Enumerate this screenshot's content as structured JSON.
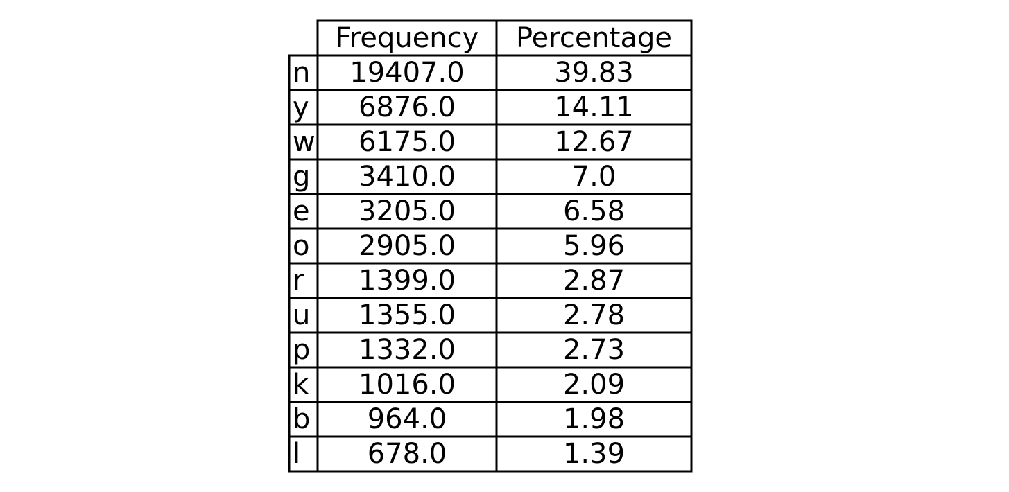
{
  "chart_data": {
    "type": "table",
    "columns": [
      "Frequency",
      "Percentage"
    ],
    "rows": [
      {
        "label": "n",
        "frequency": "19407.0",
        "percentage": "39.83"
      },
      {
        "label": "y",
        "frequency": "6876.0",
        "percentage": "14.11"
      },
      {
        "label": "w",
        "frequency": "6175.0",
        "percentage": "12.67"
      },
      {
        "label": "g",
        "frequency": "3410.0",
        "percentage": "7.0"
      },
      {
        "label": "e",
        "frequency": "3205.0",
        "percentage": "6.58"
      },
      {
        "label": "o",
        "frequency": "2905.0",
        "percentage": "5.96"
      },
      {
        "label": "r",
        "frequency": "1399.0",
        "percentage": "2.87"
      },
      {
        "label": "u",
        "frequency": "1355.0",
        "percentage": "2.78"
      },
      {
        "label": "p",
        "frequency": "1332.0",
        "percentage": "2.73"
      },
      {
        "label": "k",
        "frequency": "1016.0",
        "percentage": "2.09"
      },
      {
        "label": "b",
        "frequency": "964.0",
        "percentage": "1.98"
      },
      {
        "label": "l",
        "frequency": "678.0",
        "percentage": "1.39"
      }
    ]
  }
}
